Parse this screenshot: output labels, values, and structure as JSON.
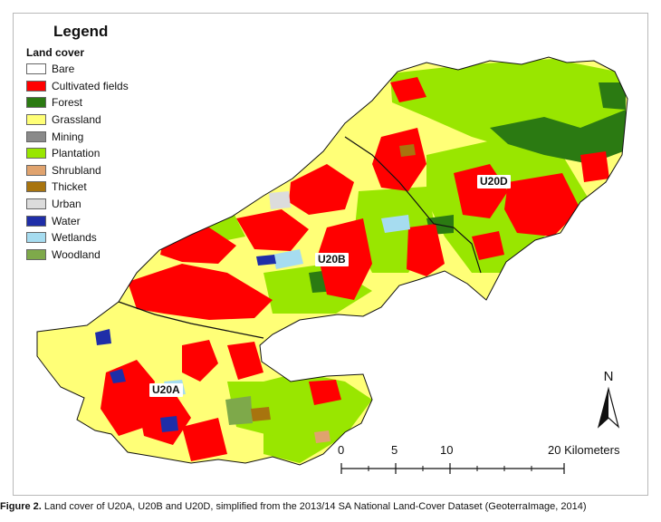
{
  "legend": {
    "title": "Legend",
    "subtitle": "Land cover",
    "items": [
      {
        "label": "Bare",
        "color": "#ffffff"
      },
      {
        "label": "Cultivated fields",
        "color": "#ff0000"
      },
      {
        "label": "Forest",
        "color": "#2b7a12"
      },
      {
        "label": "Grassland",
        "color": "#ffff77"
      },
      {
        "label": "Mining",
        "color": "#8a8a8a"
      },
      {
        "label": "Plantation",
        "color": "#99e600"
      },
      {
        "label": "Shrubland",
        "color": "#e0a36e"
      },
      {
        "label": "Thicket",
        "color": "#a8740e"
      },
      {
        "label": "Urban",
        "color": "#dcdcdc"
      },
      {
        "label": "Water",
        "color": "#1f2ea8"
      },
      {
        "label": "Wetlands",
        "color": "#a6dcf0"
      },
      {
        "label": "Woodland",
        "color": "#7ea94a"
      }
    ]
  },
  "zones": {
    "u20a": "U20A",
    "u20b": "U20B",
    "u20d": "U20D"
  },
  "north_arrow": {
    "letter": "N"
  },
  "scale_bar": {
    "labels": [
      "0",
      "5",
      "10",
      "20 Kilometers"
    ]
  },
  "caption": {
    "figure_label": "Figure 2.",
    "text": " Land cover of U20A, U20B and U20D, simplified from the 2013/14 SA National Land-Cover Dataset (GeoterraImage, 2014)"
  }
}
